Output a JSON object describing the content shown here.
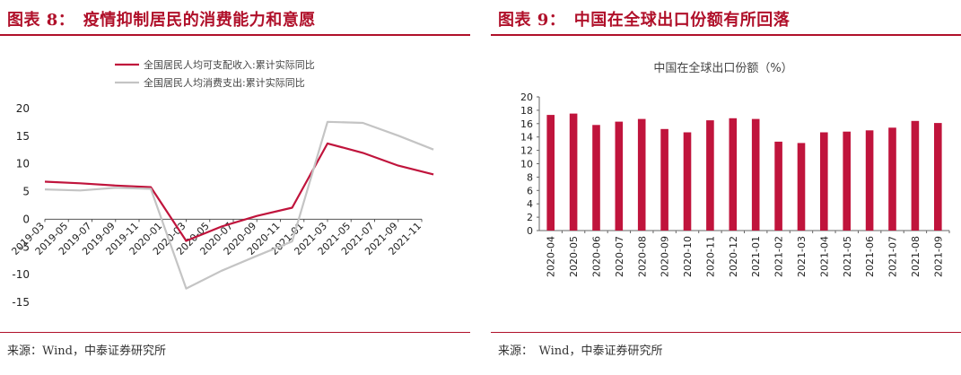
{
  "panels": [
    {
      "title": "图表 8：　疫情抑制居民的消费能力和意愿",
      "source": "来源：Wind，中泰证券研究所"
    },
    {
      "title": "图表 9：　中国在全球出口份额有所回落",
      "source": "来源：　Wind，中泰证券研究所"
    }
  ],
  "chart_data": [
    {
      "type": "line",
      "title": "",
      "xlabel": "",
      "ylabel": "",
      "ylim": [
        -15,
        20
      ],
      "yticks": [
        "20",
        "15",
        "10",
        "5",
        "0",
        "-5",
        "-10",
        "-15"
      ],
      "x": [
        "2019-03",
        "2019-05",
        "2019-07",
        "2019-09",
        "2019-11",
        "2020-01",
        "2020-03",
        "2020-05",
        "2020-07",
        "2020-09",
        "2020-11",
        "2021-01",
        "2021-03",
        "2021-05",
        "2021-07",
        "2021-09",
        "2021-11"
      ],
      "x_tick_labels": [
        "2019-03",
        "2019-05",
        "2019-07",
        "2019-09",
        "2019-11",
        "2020-01",
        "2020-03",
        "2020-05",
        "2020-07",
        "2020-09",
        "2020-11",
        "2021-01",
        "2021-03",
        "2021-05",
        "2021-07",
        "2021-09",
        "2021-11"
      ],
      "legend_position": "top",
      "series": [
        {
          "name": "全国居民人均可支配收入:累计实际同比",
          "color": "#c0143c",
          "points": [
            {
              "x": "2019-03",
              "y": 6.8
            },
            {
              "x": "2019-06",
              "y": 6.5
            },
            {
              "x": "2019-09",
              "y": 6.1
            },
            {
              "x": "2019-12",
              "y": 5.8
            },
            {
              "x": "2020-03",
              "y": -3.9
            },
            {
              "x": "2020-06",
              "y": -1.3
            },
            {
              "x": "2020-09",
              "y": 0.6
            },
            {
              "x": "2020-12",
              "y": 2.1
            },
            {
              "x": "2021-03",
              "y": 13.7
            },
            {
              "x": "2021-06",
              "y": 12.0
            },
            {
              "x": "2021-09",
              "y": 9.7
            },
            {
              "x": "2021-12",
              "y": 8.1
            }
          ]
        },
        {
          "name": "全国居民人均消费支出:累计实际同比",
          "color": "#c4c4c4",
          "points": [
            {
              "x": "2019-03",
              "y": 5.4
            },
            {
              "x": "2019-06",
              "y": 5.2
            },
            {
              "x": "2019-09",
              "y": 5.7
            },
            {
              "x": "2019-12",
              "y": 5.5
            },
            {
              "x": "2020-03",
              "y": -12.5
            },
            {
              "x": "2020-06",
              "y": -9.3
            },
            {
              "x": "2020-09",
              "y": -6.6
            },
            {
              "x": "2020-12",
              "y": -4.0
            },
            {
              "x": "2021-03",
              "y": 17.6
            },
            {
              "x": "2021-06",
              "y": 17.4
            },
            {
              "x": "2021-09",
              "y": 15.1
            },
            {
              "x": "2021-12",
              "y": 12.6
            }
          ]
        }
      ]
    },
    {
      "type": "bar",
      "title": "中国在全球出口份额（%）",
      "xlabel": "",
      "ylabel": "",
      "ylim": [
        0,
        20
      ],
      "yticks": [
        "20",
        "18",
        "16",
        "14",
        "12",
        "10",
        "8",
        "6",
        "4",
        "2",
        "0"
      ],
      "categories": [
        "2020-04",
        "2020-05",
        "2020-06",
        "2020-07",
        "2020-08",
        "2020-09",
        "2020-10",
        "2020-11",
        "2020-12",
        "2021-01",
        "2021-02",
        "2021-03",
        "2021-04",
        "2021-05",
        "2021-06",
        "2021-07",
        "2021-08",
        "2021-09"
      ],
      "values": [
        17.3,
        17.5,
        15.8,
        16.3,
        16.7,
        15.2,
        14.7,
        16.5,
        16.8,
        16.7,
        13.3,
        13.1,
        14.7,
        14.8,
        15.0,
        15.4,
        16.4,
        16.1
      ],
      "color": "#c0143c",
      "grid": false,
      "legend": false
    }
  ]
}
